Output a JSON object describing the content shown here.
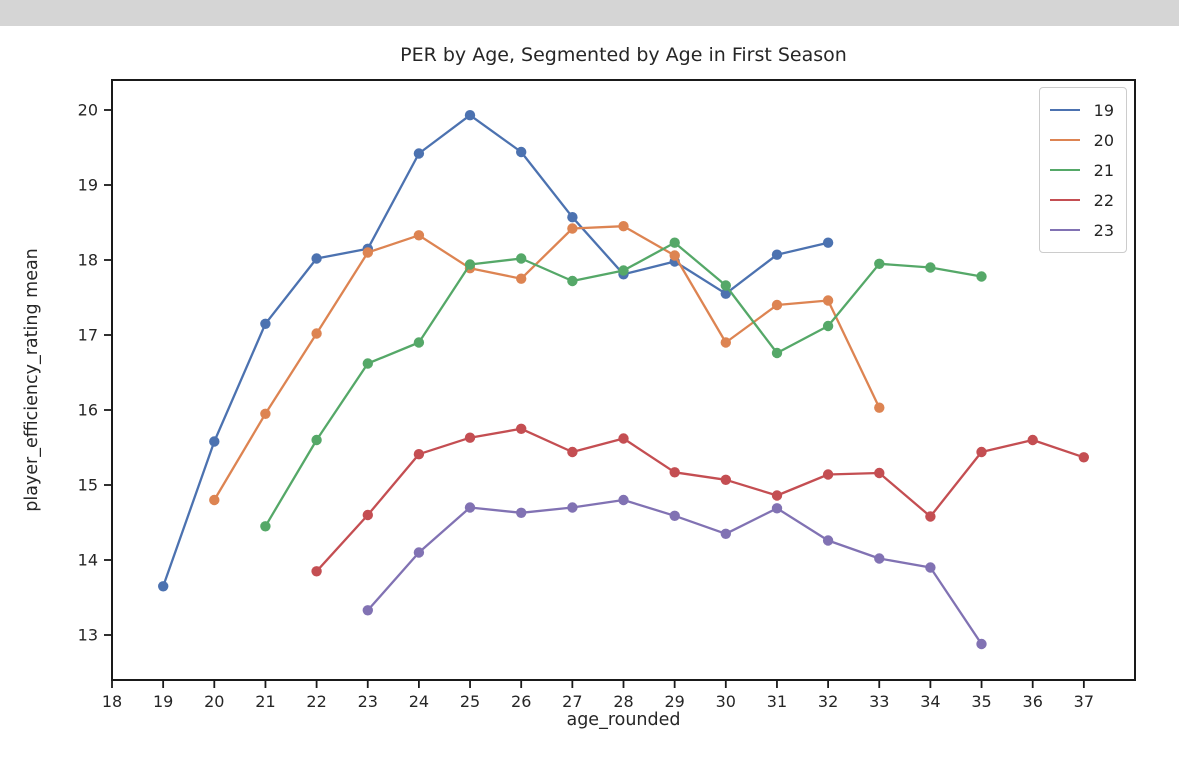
{
  "chart_data": {
    "type": "line",
    "title": "PER by Age, Segmented by Age in First Season",
    "xlabel": "age_rounded",
    "ylabel": "player_efficiency_rating mean",
    "xlim": [
      18,
      38
    ],
    "ylim": [
      12.4,
      20.4
    ],
    "xticks": [
      18,
      19,
      20,
      21,
      22,
      23,
      24,
      25,
      26,
      27,
      28,
      29,
      30,
      31,
      32,
      33,
      34,
      35,
      36,
      37
    ],
    "yticks": [
      13,
      14,
      15,
      16,
      17,
      18,
      19,
      20
    ],
    "grid": false,
    "legend_position": "upper right",
    "marker": "circle",
    "series": [
      {
        "name": "19",
        "color": "#4c72b0",
        "x": [
          19,
          20,
          21,
          22,
          23,
          24,
          25,
          26,
          27,
          28,
          29,
          30,
          31,
          32
        ],
        "y": [
          13.65,
          15.58,
          17.15,
          18.02,
          18.15,
          19.42,
          19.93,
          19.44,
          18.57,
          17.81,
          17.98,
          17.55,
          18.07,
          18.23
        ]
      },
      {
        "name": "20",
        "color": "#dd8452",
        "x": [
          20,
          21,
          22,
          23,
          24,
          25,
          26,
          27,
          28,
          29,
          30,
          31,
          32,
          33
        ],
        "y": [
          14.8,
          15.95,
          17.02,
          18.1,
          18.33,
          17.89,
          17.75,
          18.42,
          18.45,
          18.06,
          16.9,
          17.4,
          17.46,
          16.03
        ]
      },
      {
        "name": "21",
        "color": "#55a868",
        "x": [
          21,
          22,
          23,
          24,
          25,
          26,
          27,
          28,
          29,
          30,
          31,
          32,
          33,
          34,
          35
        ],
        "y": [
          14.45,
          15.6,
          16.62,
          16.9,
          17.94,
          18.02,
          17.72,
          17.86,
          18.23,
          17.66,
          16.76,
          17.12,
          17.95,
          17.9,
          17.78
        ]
      },
      {
        "name": "22",
        "color": "#c44e52",
        "x": [
          22,
          23,
          24,
          25,
          26,
          27,
          28,
          29,
          30,
          31,
          32,
          33,
          34,
          35,
          36,
          37
        ],
        "y": [
          13.85,
          14.6,
          15.41,
          15.63,
          15.75,
          15.44,
          15.62,
          15.17,
          15.07,
          14.86,
          15.14,
          15.16,
          14.58,
          15.44,
          15.6,
          15.37
        ]
      },
      {
        "name": "23",
        "color": "#8172b3",
        "x": [
          23,
          24,
          25,
          26,
          27,
          28,
          29,
          30,
          31,
          32,
          33,
          34,
          35
        ],
        "y": [
          13.33,
          14.1,
          14.7,
          14.63,
          14.7,
          14.8,
          14.59,
          14.35,
          14.69,
          14.26,
          14.02,
          13.9,
          12.88
        ]
      }
    ]
  }
}
